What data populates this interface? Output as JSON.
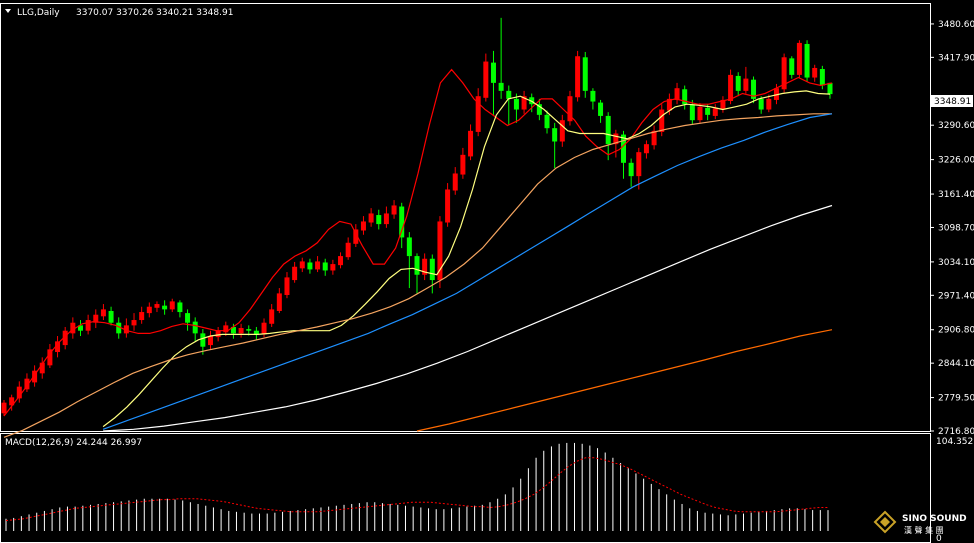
{
  "header": {
    "symbol": "LLG,Daily",
    "ohlc": "3370.07 3370.26 3340.21 3348.91"
  },
  "price_axis": {
    "ticks": [
      "3480.60",
      "3417.90",
      "3290.60",
      "3226.00",
      "3161.40",
      "3098.70",
      "3034.10",
      "2971.40",
      "2906.80",
      "2844.10",
      "2779.50",
      "2716.80"
    ],
    "current_price_label": "3348.91"
  },
  "macd_panel": {
    "header": "MACD(12,26,9) 24.244 26.997",
    "axis_top": "104.352",
    "axis_bottom": "0"
  },
  "watermark": {
    "brand_name": "SINO SOUND",
    "brand_sub": "漢 聲 集 團"
  },
  "colors": {
    "background": "#000000",
    "grid": "#ffffff",
    "candle_up": "#ff0000",
    "candle_down": "#00ff00",
    "ma_fast": "#ff0000",
    "ma_yellow": "#ffff80",
    "ma_tan": "#f4a460",
    "ma_blue": "#1e90ff",
    "ma_white": "#ffffff",
    "ma_orange": "#ff6a00",
    "macd_hist": "#ffffff",
    "macd_signal": "#ff0000",
    "current_price_box": "#ffffff"
  },
  "chart_data": [
    {
      "type": "candlestick",
      "title": "LLG,Daily",
      "ylim": [
        2716.8,
        3518
      ],
      "candles": [
        [
          2750,
          2770,
          2745,
          2775
        ],
        [
          2765,
          2780,
          2755,
          2785
        ],
        [
          2778,
          2800,
          2770,
          2810
        ],
        [
          2795,
          2815,
          2790,
          2825
        ],
        [
          2808,
          2830,
          2800,
          2840
        ],
        [
          2825,
          2845,
          2815,
          2855
        ],
        [
          2840,
          2870,
          2835,
          2880
        ],
        [
          2865,
          2885,
          2855,
          2895
        ],
        [
          2878,
          2905,
          2870,
          2912
        ],
        [
          2900,
          2920,
          2890,
          2930
        ],
        [
          2915,
          2905,
          2895,
          2925
        ],
        [
          2905,
          2925,
          2898,
          2935
        ],
        [
          2920,
          2935,
          2910,
          2945
        ],
        [
          2932,
          2945,
          2925,
          2955
        ],
        [
          2942,
          2920,
          2915,
          2950
        ],
        [
          2920,
          2900,
          2890,
          2930
        ],
        [
          2900,
          2915,
          2892,
          2928
        ],
        [
          2915,
          2925,
          2905,
          2938
        ],
        [
          2925,
          2940,
          2918,
          2950
        ],
        [
          2938,
          2950,
          2930,
          2958
        ],
        [
          2948,
          2955,
          2940,
          2960
        ],
        [
          2952,
          2945,
          2935,
          2962
        ],
        [
          2945,
          2960,
          2940,
          2965
        ],
        [
          2958,
          2940,
          2930,
          2962
        ],
        [
          2938,
          2920,
          2905,
          2945
        ],
        [
          2922,
          2900,
          2885,
          2930
        ],
        [
          2900,
          2875,
          2860,
          2908
        ],
        [
          2878,
          2895,
          2870,
          2905
        ],
        [
          2893,
          2905,
          2885,
          2912
        ],
        [
          2902,
          2915,
          2895,
          2922
        ],
        [
          2912,
          2900,
          2890,
          2918
        ],
        [
          2900,
          2910,
          2892,
          2918
        ],
        [
          2908,
          2905,
          2896,
          2915
        ],
        [
          2905,
          2898,
          2888,
          2912
        ],
        [
          2898,
          2920,
          2893,
          2928
        ],
        [
          2918,
          2945,
          2912,
          2955
        ],
        [
          2942,
          2975,
          2938,
          2985
        ],
        [
          2972,
          3005,
          2966,
          3015
        ],
        [
          3000,
          3025,
          2995,
          3034
        ],
        [
          3022,
          3035,
          3015,
          3042
        ],
        [
          3033,
          3020,
          3012,
          3040
        ],
        [
          3020,
          3035,
          3015,
          3045
        ],
        [
          3033,
          3018,
          3008,
          3040
        ],
        [
          3018,
          3030,
          3010,
          3038
        ],
        [
          3028,
          3045,
          3022,
          3052
        ],
        [
          3043,
          3070,
          3038,
          3080
        ],
        [
          3068,
          3095,
          3062,
          3105
        ],
        [
          3093,
          3110,
          3085,
          3120
        ],
        [
          3108,
          3125,
          3100,
          3135
        ],
        [
          3122,
          3105,
          3095,
          3132
        ],
        [
          3105,
          3125,
          3098,
          3138
        ],
        [
          3123,
          3140,
          3115,
          3150
        ],
        [
          3138,
          3080,
          3060,
          3145
        ],
        [
          3080,
          3045,
          2985,
          3090
        ],
        [
          3045,
          3010,
          2975,
          3050
        ],
        [
          3010,
          3040,
          3000,
          3050
        ],
        [
          3040,
          3000,
          2975,
          3048
        ],
        [
          3000,
          3110,
          2985,
          3120
        ],
        [
          3108,
          3170,
          3100,
          3182
        ],
        [
          3168,
          3200,
          3160,
          3212
        ],
        [
          3198,
          3235,
          3190,
          3248
        ],
        [
          3232,
          3280,
          3225,
          3292
        ],
        [
          3278,
          3345,
          3270,
          3360
        ],
        [
          3342,
          3410,
          3335,
          3425
        ],
        [
          3408,
          3370,
          3310,
          3430
        ],
        [
          3370,
          3355,
          3340,
          3492
        ],
        [
          3355,
          3340,
          3290,
          3365
        ],
        [
          3340,
          3320,
          3295,
          3350
        ],
        [
          3320,
          3345,
          3312,
          3355
        ],
        [
          3343,
          3330,
          3315,
          3350
        ],
        [
          3330,
          3310,
          3300,
          3340
        ],
        [
          3310,
          3285,
          3275,
          3318
        ],
        [
          3285,
          3260,
          3210,
          3295
        ],
        [
          3260,
          3300,
          3250,
          3310
        ],
        [
          3298,
          3345,
          3290,
          3355
        ],
        [
          3343,
          3420,
          3335,
          3430
        ],
        [
          3418,
          3355,
          3342,
          3428
        ],
        [
          3355,
          3335,
          3320,
          3360
        ],
        [
          3333,
          3308,
          3295,
          3338
        ],
        [
          3308,
          3255,
          3225,
          3315
        ],
        [
          3255,
          3275,
          3230,
          3282
        ],
        [
          3273,
          3220,
          3190,
          3280
        ],
        [
          3220,
          3195,
          3175,
          3228
        ],
        [
          3195,
          3240,
          3170,
          3248
        ],
        [
          3238,
          3255,
          3228,
          3262
        ],
        [
          3253,
          3280,
          3245,
          3290
        ],
        [
          3278,
          3320,
          3270,
          3330
        ],
        [
          3318,
          3340,
          3310,
          3350
        ],
        [
          3338,
          3360,
          3330,
          3370
        ],
        [
          3358,
          3330,
          3320,
          3365
        ],
        [
          3330,
          3300,
          3292,
          3338
        ],
        [
          3300,
          3325,
          3295,
          3332
        ],
        [
          3323,
          3310,
          3300,
          3330
        ],
        [
          3308,
          3322,
          3302,
          3330
        ],
        [
          3320,
          3338,
          3314,
          3345
        ],
        [
          3336,
          3385,
          3330,
          3395
        ],
        [
          3383,
          3355,
          3345,
          3390
        ],
        [
          3355,
          3378,
          3350,
          3400
        ],
        [
          3376,
          3340,
          3332,
          3382
        ],
        [
          3340,
          3320,
          3312,
          3345
        ],
        [
          3320,
          3340,
          3315,
          3348
        ],
        [
          3338,
          3360,
          3330,
          3368
        ],
        [
          3358,
          3418,
          3352,
          3425
        ],
        [
          3416,
          3385,
          3378,
          3420
        ],
        [
          3385,
          3445,
          3380,
          3450
        ],
        [
          3443,
          3380,
          3372,
          3450
        ],
        [
          3380,
          3398,
          3372,
          3404
        ],
        [
          3396,
          3365,
          3358,
          3402
        ],
        [
          3370,
          3348.91,
          3340.21,
          3370.26
        ]
      ],
      "moving_averages": [
        {
          "color": "#ff0000",
          "values": [
            2745,
            2772,
            2800,
            2830,
            2860,
            2885,
            2905,
            2918,
            2922,
            2920,
            2915,
            2905,
            2900,
            2900,
            2905,
            2913,
            2918,
            2915,
            2910,
            2905,
            2905,
            2920,
            2945,
            2975,
            3005,
            3030,
            3045,
            3055,
            3070,
            3095,
            3110,
            3105,
            3065,
            3030,
            3030,
            3060,
            3120,
            3200,
            3290,
            3370,
            3395,
            3370,
            3340,
            3320,
            3305,
            3290,
            3300,
            3320,
            3340,
            3340,
            3320,
            3300,
            3270,
            3250,
            3235,
            3245,
            3265,
            3295,
            3320,
            3335,
            3340,
            3335,
            3330,
            3330,
            3335,
            3340,
            3350,
            3345,
            3350,
            3360,
            3370,
            3380,
            3370,
            3365,
            3370
          ]
        },
        {
          "color": "#ffff80",
          "values": [
            2725,
            2742,
            2762,
            2785,
            2810,
            2835,
            2858,
            2875,
            2888,
            2895,
            2898,
            2898,
            2898,
            2898,
            2900,
            2903,
            2905,
            2905,
            2905,
            2905,
            2915,
            2933,
            2955,
            2978,
            3003,
            3020,
            3022,
            3015,
            3010,
            3045,
            3100,
            3170,
            3250,
            3310,
            3340,
            3345,
            3335,
            3320,
            3300,
            3280,
            3275,
            3275,
            3275,
            3270,
            3265,
            3275,
            3290,
            3310,
            3325,
            3330,
            3328,
            3325,
            3320,
            3325,
            3330,
            3340,
            3345,
            3350,
            3353,
            3355,
            3350,
            3349
          ]
        },
        {
          "color": "#f4a460",
          "values": [
            2705,
            2718,
            2735,
            2752,
            2772,
            2790,
            2808,
            2825,
            2838,
            2850,
            2860,
            2868,
            2875,
            2882,
            2890,
            2898,
            2905,
            2912,
            2920,
            2928,
            2938,
            2950,
            2965,
            2985,
            3005,
            3030,
            3060,
            3100,
            3140,
            3180,
            3210,
            3230,
            3245,
            3255,
            3265,
            3275,
            3283,
            3290,
            3295,
            3300,
            3303,
            3305,
            3308,
            3310,
            3312,
            3312
          ]
        },
        {
          "color": "#1e90ff",
          "values": [
            2720,
            2735,
            2750,
            2765,
            2780,
            2795,
            2810,
            2825,
            2840,
            2855,
            2870,
            2885,
            2900,
            2918,
            2935,
            2955,
            2975,
            3000,
            3025,
            3050,
            3075,
            3100,
            3125,
            3150,
            3175,
            3195,
            3215,
            3232,
            3248,
            3262,
            3278,
            3292,
            3305,
            3312
          ]
        },
        {
          "color": "#ffffff",
          "values": [
            2716.8,
            2720,
            2726,
            2734,
            2742,
            2752,
            2762,
            2775,
            2790,
            2806,
            2824,
            2844,
            2866,
            2890,
            2914,
            2938,
            2962,
            2986,
            3010,
            3034,
            3058,
            3080,
            3102,
            3122,
            3140
          ]
        },
        {
          "color": "#ff6a00",
          "values": [
            2716.8,
            2730,
            2745,
            2760,
            2775,
            2790,
            2805,
            2820,
            2835,
            2850,
            2866,
            2880,
            2895,
            2906.8
          ]
        }
      ]
    },
    {
      "type": "bar",
      "title": "MACD(12,26,9) 24.244 26.997",
      "ylim": [
        0,
        104.352
      ],
      "histogram": [
        14,
        15,
        17,
        19,
        21,
        23,
        25,
        27,
        28,
        28,
        29,
        30,
        31,
        32,
        33,
        34,
        35,
        36,
        37,
        37,
        37,
        37,
        36,
        35,
        33,
        31,
        29,
        27,
        25,
        23,
        22,
        21,
        20,
        20,
        20,
        21,
        22,
        23,
        24,
        25,
        26,
        27,
        28,
        29,
        30,
        31,
        32,
        33,
        33,
        32,
        31,
        30,
        29,
        28,
        27,
        26,
        25,
        25,
        26,
        27,
        28,
        29,
        30,
        33,
        37,
        42,
        50,
        60,
        72,
        84,
        92,
        97,
        100,
        101,
        101,
        100,
        98,
        95,
        90,
        84,
        78,
        72,
        66,
        60,
        54,
        48,
        42,
        36,
        31,
        26,
        23,
        21,
        20,
        19,
        18,
        19,
        20,
        21,
        22,
        23,
        24,
        25,
        26,
        26,
        25,
        24,
        24,
        24
      ],
      "signal": [
        12,
        13,
        14,
        16,
        18,
        20,
        22,
        24,
        26,
        27,
        28,
        29,
        30,
        31,
        32,
        33,
        34,
        35,
        36,
        36,
        37,
        37,
        37,
        36,
        35,
        34,
        32,
        30,
        28,
        26,
        25,
        24,
        23,
        22,
        22,
        22,
        22,
        23,
        24,
        25,
        26,
        27,
        28,
        29,
        30,
        31,
        32,
        33,
        33,
        33,
        32,
        31,
        30,
        29,
        28,
        28,
        27,
        28,
        30,
        33,
        37,
        42,
        49,
        57,
        66,
        74,
        80,
        84,
        84,
        82,
        79,
        76,
        72,
        67,
        62,
        57,
        52,
        47,
        42,
        38,
        34,
        30,
        27,
        25,
        23,
        22,
        22,
        22,
        22,
        22,
        23,
        24,
        25,
        26,
        27,
        27
      ]
    }
  ]
}
